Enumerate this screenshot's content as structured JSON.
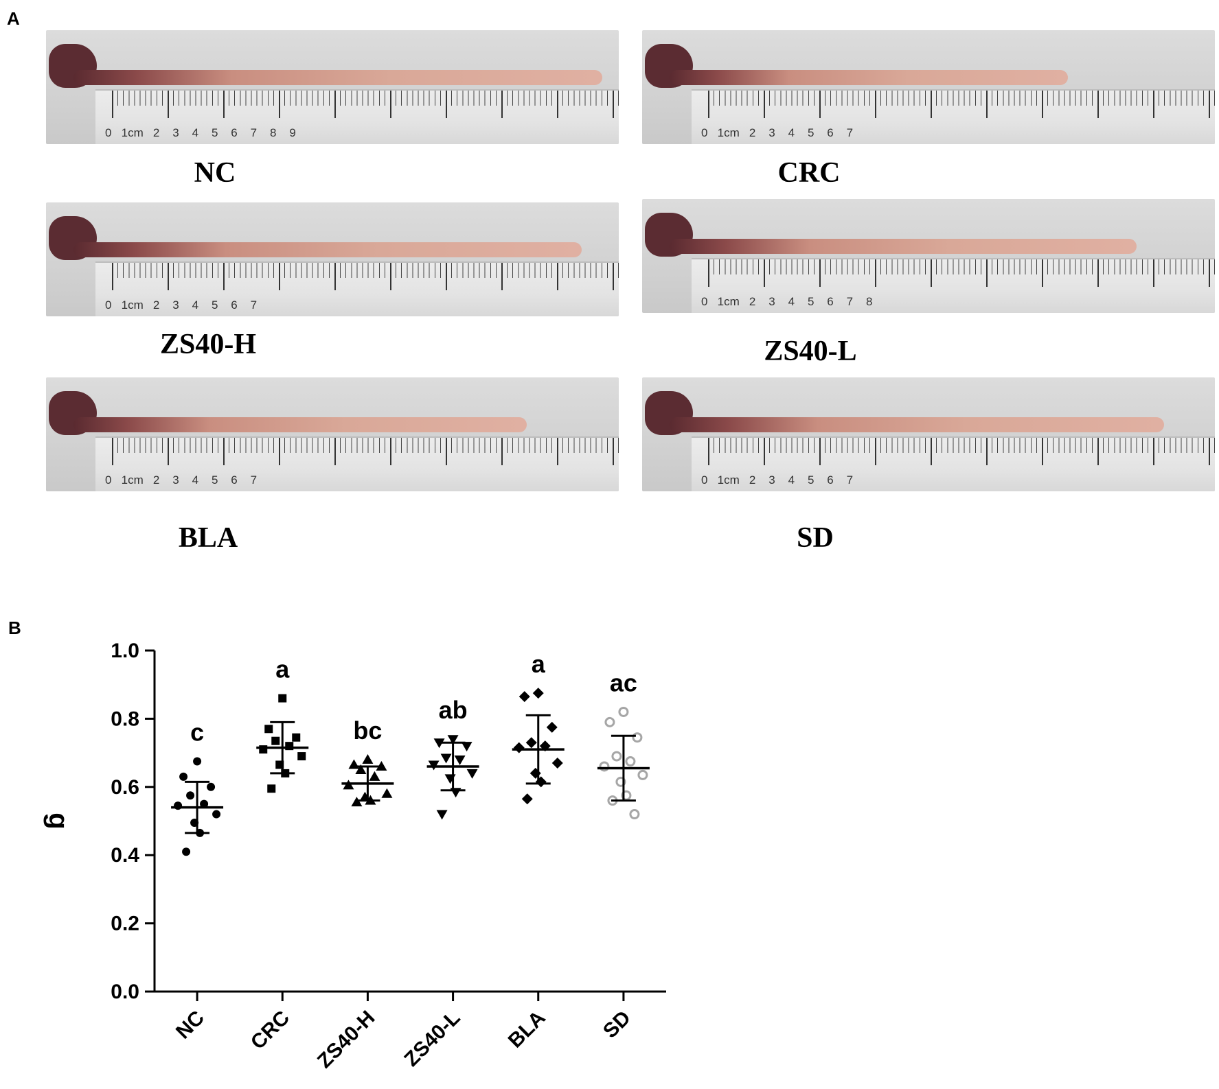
{
  "panel_a": {
    "letter": "A",
    "photos": [
      {
        "label": "NC",
        "ruler": "0   1cm   2    3    4    5    6    7    8    9",
        "arrow": false
      },
      {
        "label": "CRC",
        "ruler": "0   1cm   2    3    4    5    6    7",
        "arrow": true
      },
      {
        "label": "ZS40-H",
        "ruler": "0   1cm   2    3    4    5    6    7",
        "arrow": false
      },
      {
        "label": "ZS40-L",
        "ruler": "0   1cm   2    3    4    5    6    7    8",
        "arrow": true
      },
      {
        "label": "BLA",
        "ruler": "0   1cm   2    3    4    5    6    7",
        "arrow": true
      },
      {
        "label": "SD",
        "ruler": "0   1cm   2    3    4    5    6    7",
        "arrow": false
      }
    ]
  },
  "panel_b": {
    "letter": "B"
  },
  "chart_data": {
    "type": "scatter",
    "title": "",
    "xlabel": "",
    "ylabel": "g",
    "ylim": [
      0,
      1.0
    ],
    "yticks": [
      "0.0",
      "0.2",
      "0.4",
      "0.6",
      "0.8",
      "1.0"
    ],
    "grid": false,
    "categories": [
      "NC",
      "CRC",
      "ZS40-H",
      "ZS40-L",
      "BLA",
      "SD"
    ],
    "series": [
      {
        "category": "NC",
        "marker": "circle",
        "color": "#000000",
        "mean": 0.54,
        "sd_upper": 0.615,
        "sd_lower": 0.465,
        "significance": "c",
        "points": [
          0.675,
          0.63,
          0.6,
          0.575,
          0.55,
          0.545,
          0.52,
          0.495,
          0.465,
          0.41
        ]
      },
      {
        "category": "CRC",
        "marker": "square",
        "color": "#000000",
        "mean": 0.715,
        "sd_upper": 0.79,
        "sd_lower": 0.64,
        "significance": "a",
        "points": [
          0.86,
          0.77,
          0.745,
          0.735,
          0.72,
          0.71,
          0.69,
          0.665,
          0.64,
          0.595
        ]
      },
      {
        "category": "ZS40-H",
        "marker": "triangle-up",
        "color": "#000000",
        "mean": 0.61,
        "sd_upper": 0.66,
        "sd_lower": 0.56,
        "significance": "bc",
        "points": [
          0.68,
          0.665,
          0.66,
          0.65,
          0.63,
          0.605,
          0.58,
          0.57,
          0.56,
          0.555
        ]
      },
      {
        "category": "ZS40-L",
        "marker": "triangle-down",
        "color": "#000000",
        "mean": 0.66,
        "sd_upper": 0.73,
        "sd_lower": 0.59,
        "significance": "ab",
        "points": [
          0.74,
          0.73,
          0.72,
          0.685,
          0.68,
          0.665,
          0.64,
          0.625,
          0.585,
          0.52
        ]
      },
      {
        "category": "BLA",
        "marker": "diamond",
        "color": "#000000",
        "mean": 0.71,
        "sd_upper": 0.81,
        "sd_lower": 0.61,
        "significance": "a",
        "points": [
          0.875,
          0.865,
          0.775,
          0.73,
          0.72,
          0.715,
          0.67,
          0.64,
          0.615,
          0.565
        ]
      },
      {
        "category": "SD",
        "marker": "open-circle",
        "color": "#a6a6a6",
        "mean": 0.655,
        "sd_upper": 0.75,
        "sd_lower": 0.56,
        "significance": "ac",
        "points": [
          0.82,
          0.79,
          0.745,
          0.69,
          0.675,
          0.66,
          0.635,
          0.615,
          0.575,
          0.56,
          0.52
        ]
      }
    ]
  }
}
